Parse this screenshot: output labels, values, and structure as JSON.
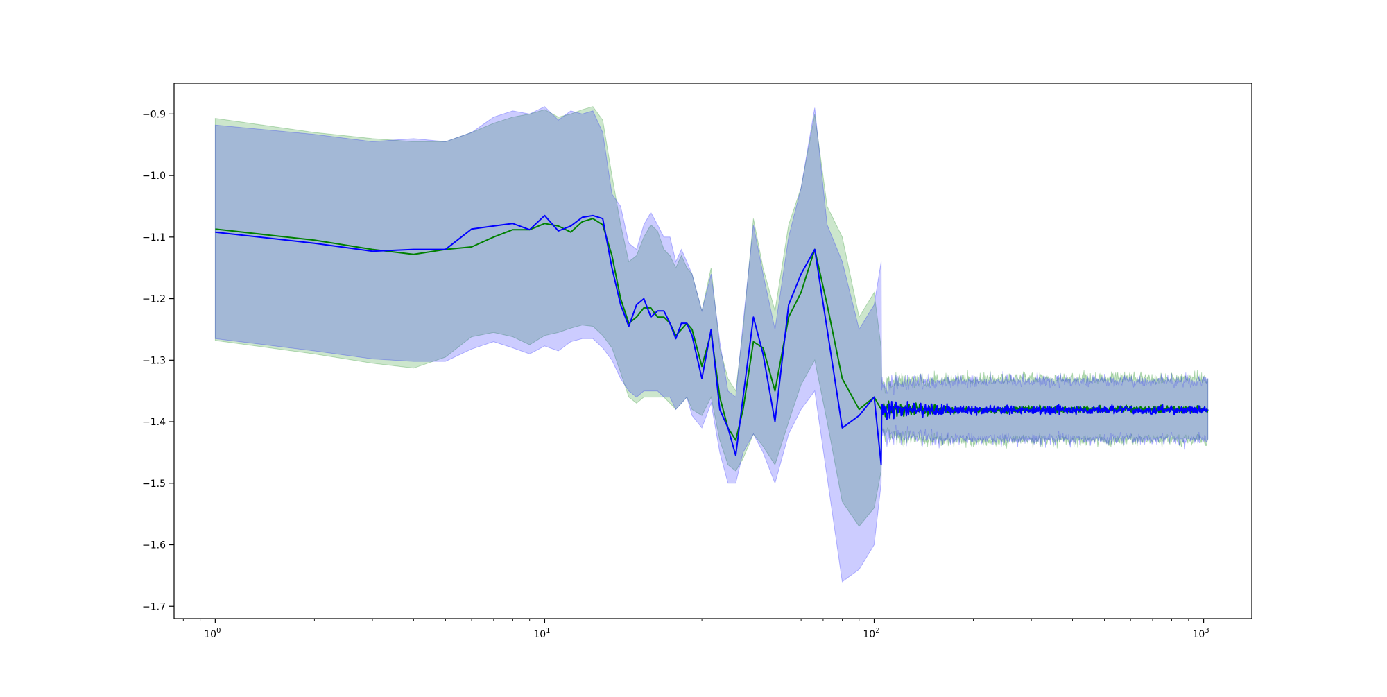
{
  "chart_data": {
    "type": "line",
    "title": "",
    "xlabel": "",
    "ylabel": "",
    "xscale": "log",
    "xlim": [
      0.75,
      1400
    ],
    "ylim": [
      -1.72,
      -0.85
    ],
    "grid": false,
    "legend": "none",
    "x_ticks": [
      {
        "value": 1,
        "base": "10",
        "exp": "0"
      },
      {
        "value": 10,
        "base": "10",
        "exp": "1"
      },
      {
        "value": 100,
        "base": "10",
        "exp": "2"
      },
      {
        "value": 1000,
        "base": "10",
        "exp": "3"
      }
    ],
    "y_ticks": [
      {
        "value": -0.9,
        "label": "−0.9"
      },
      {
        "value": -1.0,
        "label": "−1.0"
      },
      {
        "value": -1.1,
        "label": "−1.1"
      },
      {
        "value": -1.2,
        "label": "−1.2"
      },
      {
        "value": -1.3,
        "label": "−1.3"
      },
      {
        "value": -1.4,
        "label": "−1.4"
      },
      {
        "value": -1.5,
        "label": "−1.5"
      },
      {
        "value": -1.6,
        "label": "−1.6"
      },
      {
        "value": -1.7,
        "label": "−1.7"
      }
    ],
    "series": [
      {
        "color": "#008000",
        "band_color": "#008000",
        "band_opacity": 0.2,
        "x": [
          1,
          2,
          3,
          4,
          5,
          6,
          7,
          8,
          9,
          10,
          11,
          12,
          13,
          14,
          15,
          16,
          17,
          18,
          19,
          20,
          21,
          22,
          23,
          24,
          25,
          26,
          27,
          28,
          30,
          32,
          34,
          36,
          38,
          40,
          43,
          46,
          50,
          55,
          60,
          66,
          72,
          80,
          90,
          100,
          105
        ],
        "y": [
          -1.087,
          -1.105,
          -1.12,
          -1.128,
          -1.12,
          -1.116,
          -1.1,
          -1.088,
          -1.088,
          -1.078,
          -1.082,
          -1.092,
          -1.075,
          -1.07,
          -1.08,
          -1.13,
          -1.2,
          -1.24,
          -1.23,
          -1.215,
          -1.215,
          -1.23,
          -1.23,
          -1.24,
          -1.26,
          -1.25,
          -1.24,
          -1.25,
          -1.31,
          -1.255,
          -1.36,
          -1.41,
          -1.43,
          -1.38,
          -1.27,
          -1.28,
          -1.35,
          -1.23,
          -1.19,
          -1.12,
          -1.21,
          -1.33,
          -1.38,
          -1.36,
          -1.38
        ],
        "upper": [
          -0.907,
          -0.93,
          -0.94,
          -0.945,
          -0.945,
          -0.93,
          -0.915,
          -0.905,
          -0.9,
          -0.893,
          -0.905,
          -0.9,
          -0.893,
          -0.888,
          -0.91,
          -1.0,
          -1.08,
          -1.14,
          -1.13,
          -1.1,
          -1.08,
          -1.09,
          -1.12,
          -1.13,
          -1.15,
          -1.13,
          -1.15,
          -1.16,
          -1.22,
          -1.15,
          -1.28,
          -1.33,
          -1.35,
          -1.25,
          -1.07,
          -1.15,
          -1.22,
          -1.08,
          -1.02,
          -0.9,
          -1.05,
          -1.1,
          -1.23,
          -1.19,
          -1.28
        ],
        "lower": [
          -1.268,
          -1.29,
          -1.305,
          -1.313,
          -1.295,
          -1.262,
          -1.255,
          -1.262,
          -1.275,
          -1.26,
          -1.255,
          -1.248,
          -1.243,
          -1.245,
          -1.26,
          -1.28,
          -1.32,
          -1.36,
          -1.37,
          -1.36,
          -1.36,
          -1.36,
          -1.36,
          -1.37,
          -1.38,
          -1.37,
          -1.36,
          -1.38,
          -1.39,
          -1.36,
          -1.43,
          -1.47,
          -1.48,
          -1.46,
          -1.42,
          -1.44,
          -1.47,
          -1.4,
          -1.34,
          -1.3,
          -1.4,
          -1.53,
          -1.57,
          -1.54,
          -1.48
        ],
        "tail": {
          "x_start": 105,
          "x_end": 1030,
          "n": 620,
          "mean": -1.38,
          "noise": 0.008,
          "band_half": 0.045,
          "band_noise": 0.02
        }
      },
      {
        "color": "#0000ff",
        "band_color": "#0000ff",
        "band_opacity": 0.2,
        "x": [
          1,
          2,
          3,
          4,
          5,
          6,
          7,
          8,
          9,
          10,
          11,
          12,
          13,
          14,
          15,
          16,
          17,
          18,
          19,
          20,
          21,
          22,
          23,
          24,
          25,
          26,
          27,
          28,
          30,
          32,
          34,
          36,
          38,
          40,
          43,
          46,
          50,
          55,
          60,
          66,
          72,
          80,
          90,
          100,
          105
        ],
        "y": [
          -1.092,
          -1.11,
          -1.123,
          -1.12,
          -1.12,
          -1.087,
          -1.082,
          -1.078,
          -1.088,
          -1.065,
          -1.09,
          -1.082,
          -1.068,
          -1.065,
          -1.07,
          -1.15,
          -1.21,
          -1.245,
          -1.21,
          -1.2,
          -1.23,
          -1.22,
          -1.22,
          -1.24,
          -1.265,
          -1.24,
          -1.24,
          -1.26,
          -1.33,
          -1.25,
          -1.38,
          -1.41,
          -1.455,
          -1.36,
          -1.23,
          -1.29,
          -1.4,
          -1.21,
          -1.16,
          -1.12,
          -1.25,
          -1.41,
          -1.39,
          -1.36,
          -1.47
        ],
        "upper": [
          -0.918,
          -0.933,
          -0.945,
          -0.94,
          -0.945,
          -0.93,
          -0.905,
          -0.895,
          -0.9,
          -0.888,
          -0.91,
          -0.895,
          -0.9,
          -0.895,
          -0.93,
          -1.03,
          -1.05,
          -1.11,
          -1.12,
          -1.08,
          -1.06,
          -1.08,
          -1.1,
          -1.1,
          -1.14,
          -1.12,
          -1.14,
          -1.16,
          -1.22,
          -1.16,
          -1.27,
          -1.35,
          -1.36,
          -1.24,
          -1.08,
          -1.16,
          -1.25,
          -1.1,
          -1.02,
          -0.89,
          -1.08,
          -1.14,
          -1.25,
          -1.21,
          -1.14
        ],
        "lower": [
          -1.265,
          -1.285,
          -1.298,
          -1.302,
          -1.302,
          -1.282,
          -1.27,
          -1.28,
          -1.29,
          -1.277,
          -1.285,
          -1.27,
          -1.265,
          -1.265,
          -1.28,
          -1.3,
          -1.33,
          -1.35,
          -1.36,
          -1.35,
          -1.35,
          -1.35,
          -1.36,
          -1.36,
          -1.38,
          -1.37,
          -1.36,
          -1.39,
          -1.41,
          -1.37,
          -1.45,
          -1.5,
          -1.5,
          -1.45,
          -1.42,
          -1.45,
          -1.5,
          -1.42,
          -1.38,
          -1.35,
          -1.49,
          -1.66,
          -1.64,
          -1.6,
          -1.5
        ],
        "tail": {
          "x_start": 105,
          "x_end": 1030,
          "n": 620,
          "mean": -1.381,
          "noise": 0.01,
          "band_half": 0.042,
          "band_noise": 0.02
        }
      }
    ]
  }
}
